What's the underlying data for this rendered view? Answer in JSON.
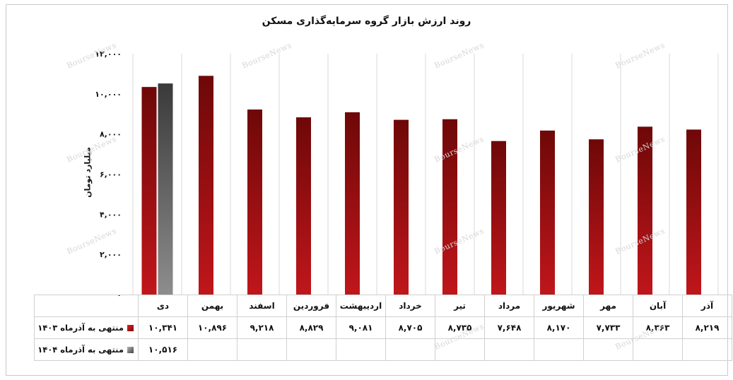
{
  "title": "روند ارزش بازار گروه سرمایه‌گذاری مسکن",
  "ylabel": "میلیارد تومان",
  "watermark": "BourseNews",
  "colors": {
    "series1": "#c0161b",
    "series1_dark": "#6e0808",
    "series2": "#8d8d8d",
    "series2_dark": "#3a3a3a",
    "grid": "#d9d9d9"
  },
  "chart_data": {
    "type": "bar",
    "title": "روند ارزش بازار گروه سرمایه‌گذاری مسکن",
    "xlabel": "",
    "ylabel": "میلیارد تومان",
    "ylim": [
      0,
      12000
    ],
    "yticks": [
      0,
      2000,
      4000,
      6000,
      8000,
      10000,
      12000
    ],
    "ytick_labels": [
      "۰",
      "۲,۰۰۰",
      "۴,۰۰۰",
      "۶,۰۰۰",
      "۸,۰۰۰",
      "۱۰,۰۰۰",
      "۱۲,۰۰۰"
    ],
    "grid": true,
    "categories": [
      "دی",
      "بهمن",
      "اسفند",
      "فروردین",
      "اردیبهشت",
      "خرداد",
      "تیر",
      "مرداد",
      "شهریور",
      "مهر",
      "آبان",
      "آذر"
    ],
    "series": [
      {
        "name": "منتهی به آذرماه ۱۴۰۳",
        "values": [
          10341,
          10896,
          9218,
          8829,
          9081,
          8705,
          8735,
          7648,
          8170,
          7733,
          8363,
          8219
        ],
        "labels": [
          "۱۰,۳۴۱",
          "۱۰,۸۹۶",
          "۹,۲۱۸",
          "۸,۸۲۹",
          "۹,۰۸۱",
          "۸,۷۰۵",
          "۸,۷۳۵",
          "۷,۶۴۸",
          "۸,۱۷۰",
          "۷,۷۳۳",
          "۸,۳۶۳",
          "۸,۲۱۹"
        ]
      },
      {
        "name": "منتهی به آذرماه ۱۴۰۴",
        "values": [
          10516,
          null,
          null,
          null,
          null,
          null,
          null,
          null,
          null,
          null,
          null,
          null
        ],
        "labels": [
          "۱۰,۵۱۶",
          "",
          "",
          "",
          "",
          "",
          "",
          "",
          "",
          "",
          "",
          ""
        ]
      }
    ],
    "legend": "data-table-below"
  }
}
